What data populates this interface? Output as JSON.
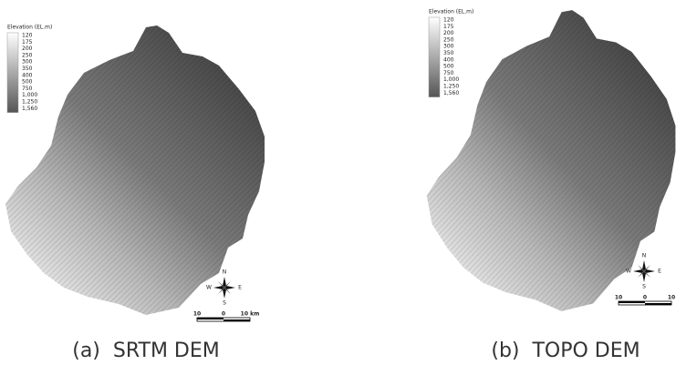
{
  "panels": [
    {
      "caption": "(a)  SRTM DEM",
      "legend": {
        "title": "Elevation (EL.m)",
        "labels": [
          "120",
          "175",
          "200",
          "250",
          "300",
          "350",
          "400",
          "500",
          "750",
          "1,000",
          "1,250",
          "1,560"
        ]
      },
      "compass": {
        "n": "N",
        "s": "S",
        "e": "E",
        "w": "W"
      },
      "scale_bar": {
        "labels": [
          "10",
          "0",
          "10 km"
        ]
      }
    },
    {
      "caption": "(b)  TOPO DEM",
      "legend": {
        "title": "Elevation (EL.m)",
        "labels": [
          "120",
          "175",
          "200",
          "250",
          "300",
          "350",
          "400",
          "500",
          "750",
          "1,000",
          "1,250",
          "1,560"
        ]
      },
      "compass": {
        "n": "N",
        "s": "S",
        "e": "E",
        "w": "W"
      },
      "scale_bar": {
        "labels": [
          "10",
          "0",
          "10"
        ]
      }
    }
  ]
}
